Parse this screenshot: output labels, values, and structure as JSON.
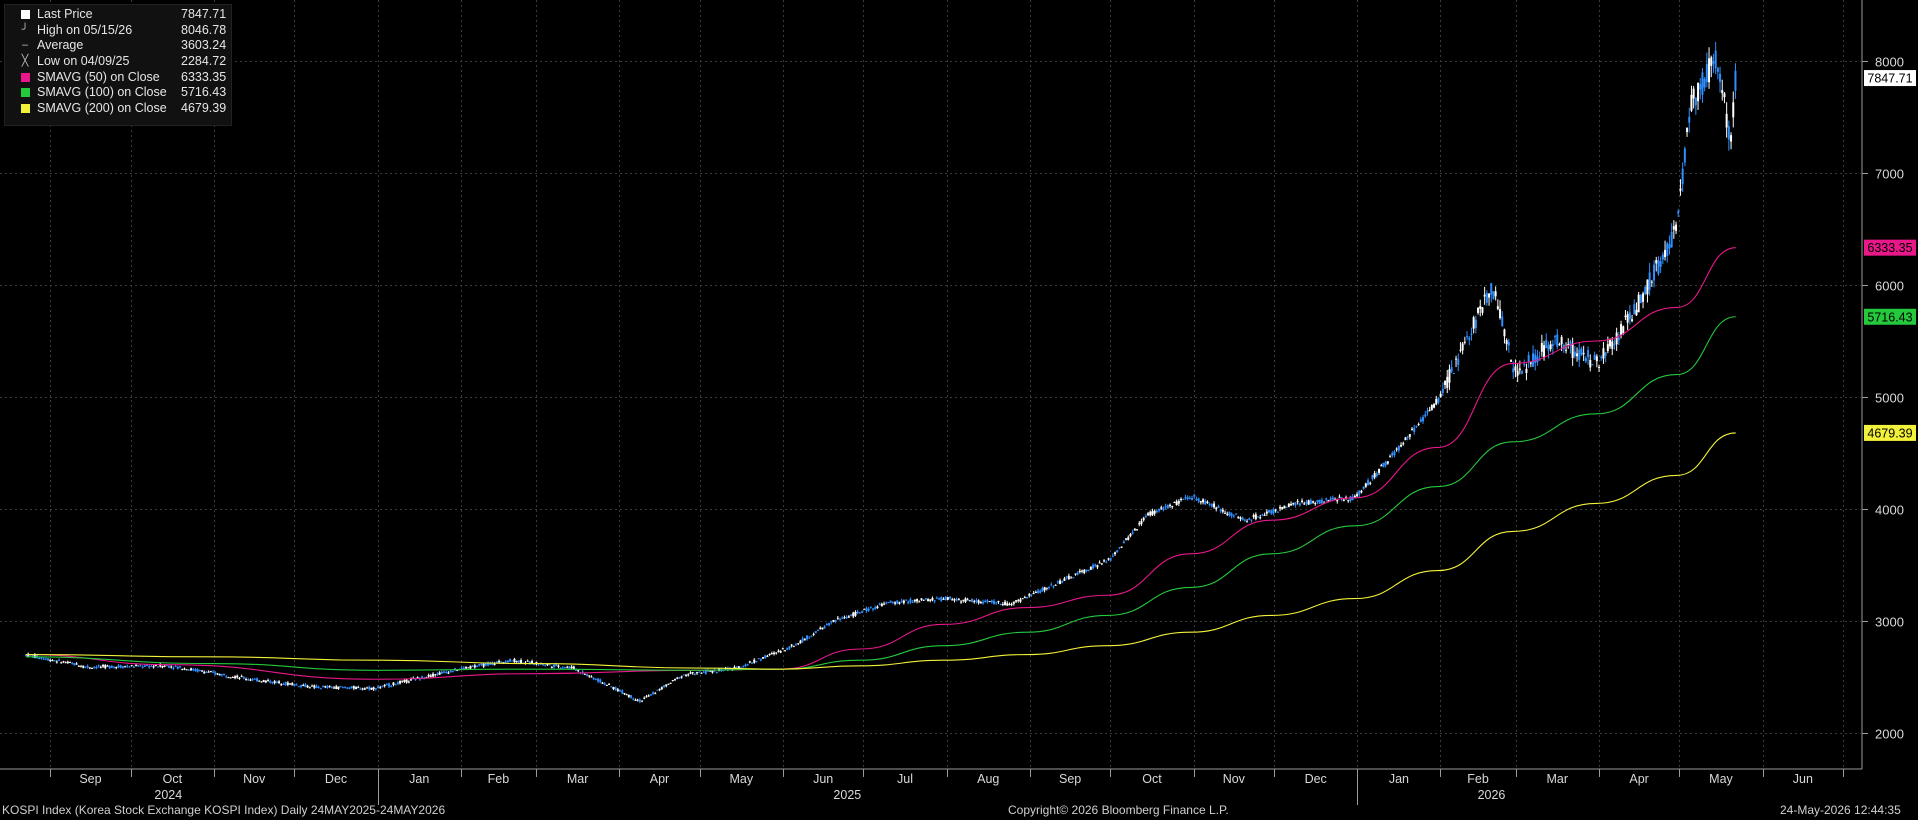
{
  "legend": {
    "rows": [
      {
        "label": "Last Price",
        "value": "7847.71",
        "swatch": "#ffffff",
        "icon": "square-icon"
      },
      {
        "label": "High on 05/15/26",
        "value": "8046.78",
        "swatch": "",
        "icon": "high-marker-icon"
      },
      {
        "label": "Average",
        "value": "3603.24",
        "swatch": "",
        "icon": "average-marker-icon"
      },
      {
        "label": "Low on 04/09/25",
        "value": "2284.72",
        "swatch": "",
        "icon": "low-marker-icon"
      },
      {
        "label": "SMAVG (50)  on Close",
        "value": "6333.35",
        "swatch": "#e8178a",
        "icon": "square-icon"
      },
      {
        "label": "SMAVG (100)  on Close",
        "value": "5716.43",
        "swatch": "#24c93c",
        "icon": "square-icon"
      },
      {
        "label": "SMAVG (200)  on Close",
        "value": "4679.39",
        "swatch": "#f2f23a",
        "icon": "square-icon"
      }
    ]
  },
  "footer": {
    "left": "KOSPI Index (Korea Stock Exchange KOSPI Index) Daily 24MAY2025-24MAY2026",
    "center": "Copyright© 2026 Bloomberg Finance L.P.",
    "right": "24-May-2026 12:44:35"
  },
  "colors": {
    "background": "#000000",
    "grid": "#3a3a3a",
    "up_candle": "#ffffff",
    "down_candle": "#2f8fff",
    "sma50": "#e8178a",
    "sma100": "#24c93c",
    "sma200": "#f2f23a",
    "last_price_tag": "#ffffff"
  },
  "chart_data": {
    "type": "line",
    "title": "KOSPI Index (Korea Stock Exchange KOSPI Index) Daily 24MAY2025-24MAY2026",
    "y_ticks": [
      2000,
      3000,
      4000,
      5000,
      6000,
      7000,
      8000
    ],
    "ylim": [
      1700,
      8300
    ],
    "month_labels": [
      "Sep",
      "Oct",
      "Nov",
      "Dec",
      "Jan",
      "Feb",
      "Mar",
      "Apr",
      "May",
      "Jun",
      "Jul",
      "Aug",
      "Sep",
      "Oct",
      "Nov",
      "Dec",
      "Jan",
      "Feb",
      "Mar",
      "Apr",
      "May",
      "Jun"
    ],
    "year_labels": [
      "2024",
      "2025",
      "2026"
    ],
    "grid": true,
    "legend_position": "top-left",
    "last_value_tags": [
      {
        "name": "Last Price",
        "value": "7847.71"
      },
      {
        "name": "SMAVG (50)",
        "value": "6333.35"
      },
      {
        "name": "SMAVG (100)",
        "value": "5716.43"
      },
      {
        "name": "SMAVG (200)",
        "value": "4679.39"
      }
    ],
    "series": [
      {
        "name": "Last Price",
        "style": "candlestick",
        "x": [
          "2024-08-23",
          "2024-09-15",
          "2024-10-15",
          "2024-11-15",
          "2024-12-09",
          "2024-12-31",
          "2025-01-31",
          "2025-02-20",
          "2025-03-15",
          "2025-04-09",
          "2025-04-25",
          "2025-05-15",
          "2025-06-05",
          "2025-06-20",
          "2025-07-10",
          "2025-08-01",
          "2025-08-25",
          "2025-09-15",
          "2025-10-01",
          "2025-10-15",
          "2025-11-01",
          "2025-11-20",
          "2025-12-10",
          "2025-12-31",
          "2026-01-15",
          "2026-02-01",
          "2026-02-20",
          "2026-03-01",
          "2026-03-15",
          "2026-04-01",
          "2026-04-15",
          "2026-04-30",
          "2026-05-05",
          "2026-05-15",
          "2026-05-20",
          "2026-05-22"
        ],
        "values": [
          2700,
          2590,
          2600,
          2480,
          2410,
          2400,
          2570,
          2650,
          2580,
          2284.72,
          2520,
          2580,
          2780,
          3000,
          3160,
          3200,
          3150,
          3380,
          3550,
          3950,
          4110,
          3900,
          4050,
          4100,
          4500,
          5000,
          6000,
          5200,
          5500,
          5300,
          5800,
          6500,
          7600,
          8046.78,
          7300,
          7847.71
        ]
      },
      {
        "name": "SMAVG (50)",
        "x": [
          "2024-08-23",
          "2024-10-15",
          "2024-12-31",
          "2025-02-28",
          "2025-04-30",
          "2025-05-31",
          "2025-06-30",
          "2025-07-31",
          "2025-08-31",
          "2025-09-30",
          "2025-10-31",
          "2025-11-30",
          "2025-12-31",
          "2026-01-31",
          "2026-02-28",
          "2026-03-31",
          "2026-04-30",
          "2026-05-22"
        ],
        "values": [
          2700,
          2610,
          2480,
          2530,
          2560,
          2570,
          2750,
          2970,
          3120,
          3230,
          3600,
          3900,
          4100,
          4550,
          5300,
          5500,
          5800,
          6333.35
        ]
      },
      {
        "name": "SMAVG (100)",
        "x": [
          "2024-08-23",
          "2024-10-31",
          "2024-12-31",
          "2025-02-28",
          "2025-04-30",
          "2025-05-31",
          "2025-06-30",
          "2025-07-31",
          "2025-08-31",
          "2025-09-30",
          "2025-10-31",
          "2025-11-30",
          "2025-12-31",
          "2026-01-31",
          "2026-02-28",
          "2026-03-31",
          "2026-04-30",
          "2026-05-22"
        ],
        "values": [
          2680,
          2620,
          2560,
          2570,
          2560,
          2570,
          2650,
          2780,
          2900,
          3050,
          3300,
          3600,
          3850,
          4200,
          4600,
          4850,
          5200,
          5716.43
        ]
      },
      {
        "name": "SMAVG (200)",
        "x": [
          "2024-08-23",
          "2024-10-31",
          "2024-12-31",
          "2025-02-28",
          "2025-04-30",
          "2025-05-31",
          "2025-06-30",
          "2025-07-31",
          "2025-08-31",
          "2025-09-30",
          "2025-10-31",
          "2025-11-30",
          "2025-12-31",
          "2026-01-31",
          "2026-02-28",
          "2026-03-31",
          "2026-04-30",
          "2026-05-22"
        ],
        "values": [
          2700,
          2680,
          2650,
          2620,
          2580,
          2570,
          2600,
          2650,
          2700,
          2780,
          2900,
          3050,
          3200,
          3450,
          3800,
          4050,
          4300,
          4679.39
        ]
      }
    ]
  }
}
